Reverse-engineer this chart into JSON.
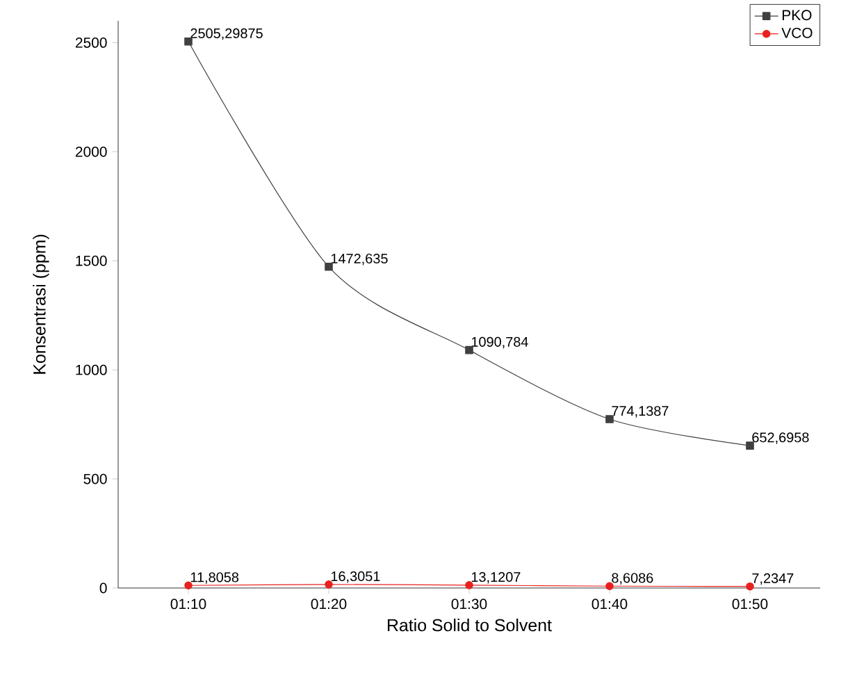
{
  "chart_data": {
    "type": "line",
    "xlabel": "Ratio Solid to Solvent",
    "ylabel": "Konsentrasi (ppm)",
    "categories": [
      "01:10",
      "01:20",
      "01:30",
      "01:40",
      "01:50"
    ],
    "series": [
      {
        "name": "PKO",
        "color": "#404040",
        "marker": "square",
        "values": [
          2505.29875,
          1472.635,
          1090.784,
          774.1387,
          652.6958
        ],
        "value_labels": [
          "2505,29875",
          "1472,635",
          "1090,784",
          "774,1387",
          "652,6958"
        ]
      },
      {
        "name": "VCO",
        "color": "#e8211f",
        "marker": "circle",
        "values": [
          11.8058,
          16.3051,
          13.1207,
          8.6086,
          7.2347
        ],
        "value_labels": [
          "11,8058",
          "16,3051",
          "13,1207",
          "8,6086",
          "7,2347"
        ]
      }
    ],
    "ylim": [
      0,
      2600
    ],
    "yticks": [
      0,
      500,
      1000,
      1500,
      2000,
      2500
    ],
    "legend": "top right",
    "grid": false
  }
}
